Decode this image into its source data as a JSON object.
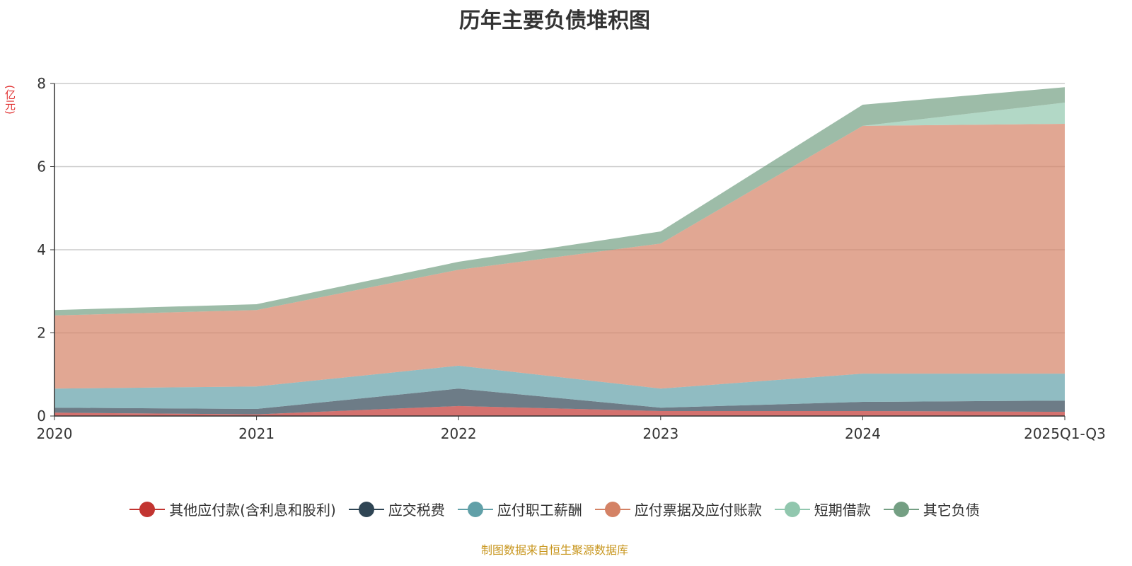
{
  "chart_data": {
    "type": "area",
    "stacked": true,
    "title": "历年主要负债堆积图",
    "ylabel": "(亿元)",
    "xlabel": "",
    "ylim": [
      0,
      8
    ],
    "yticks": [
      "0",
      "2",
      "4",
      "6",
      "8"
    ],
    "grid": true,
    "legend_position": "bottom",
    "categories": [
      "2020",
      "2021",
      "2022",
      "2023",
      "2024",
      "2025Q1-Q3"
    ],
    "series": [
      {
        "name": "其他应付款(含利息和股利)",
        "color": "#c23531",
        "values": [
          0.08,
          0.04,
          0.24,
          0.12,
          0.12,
          0.1
        ]
      },
      {
        "name": "应交税费",
        "color": "#2f4554",
        "values": [
          0.12,
          0.13,
          0.42,
          0.08,
          0.22,
          0.27
        ]
      },
      {
        "name": "应付职工薪酬",
        "color": "#61a0a8",
        "values": [
          0.46,
          0.54,
          0.55,
          0.46,
          0.68,
          0.65
        ]
      },
      {
        "name": "应付票据及应付账款",
        "color": "#d48265",
        "values": [
          1.76,
          1.84,
          2.31,
          3.49,
          5.96,
          6.01
        ]
      },
      {
        "name": "短期借款",
        "color": "#91c7ae",
        "values": [
          0,
          0,
          0,
          0,
          0,
          0.51
        ]
      },
      {
        "name": "其它负债",
        "color": "#749f83",
        "values": [
          0.13,
          0.14,
          0.19,
          0.29,
          0.51,
          0.37
        ]
      }
    ]
  },
  "source": "制图数据来自恒生聚源数据库"
}
